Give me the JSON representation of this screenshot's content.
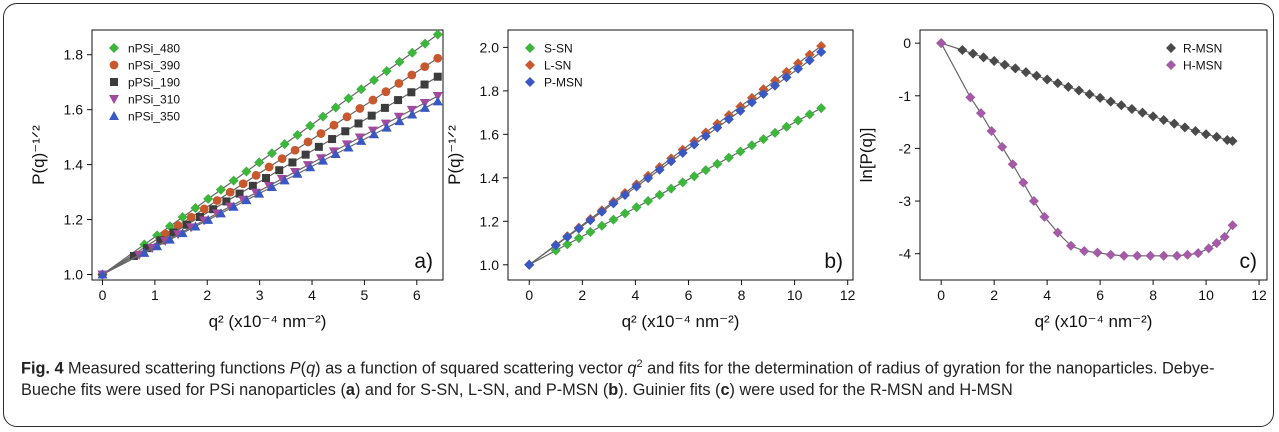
{
  "figure": {
    "caption": {
      "label": "Fig. 4",
      "s1": " Measured scattering functions ",
      "i1": "P",
      "s2": "(",
      "i2": "q",
      "s3": ") as a function of squared scattering vector ",
      "i3": "q",
      "sup1": "2",
      "s4": " and fits for the determination of radius of gyration for the nanoparticles. Debye-Bueche fits were used for PSi nanoparticles (",
      "b1": "a",
      "s5": ") and for S-SN, L-SN, and P-MSN (",
      "b2": "b",
      "s6": "). Guinier fits (",
      "b3": "c",
      "s7": ") were used for the R-MSN and H-MSN"
    }
  },
  "chart_data": [
    {
      "type": "scatter",
      "panel_label": "a)",
      "xlabel": "q² (x10⁻⁴ nm⁻²)",
      "ylabel": "P(q)⁻¹ᐟ²",
      "xlim": [
        -0.2,
        6.5
      ],
      "ylim": [
        0.98,
        1.89
      ],
      "xticks": [
        0,
        1,
        2,
        3,
        4,
        5,
        6
      ],
      "yticks": [
        1.0,
        1.2,
        1.4,
        1.6,
        1.8
      ],
      "legend_position": "top-left",
      "fit_lines": true,
      "series": [
        {
          "name": "nPSi_480",
          "color": "#3cb63c",
          "marker": "diamond",
          "slope": 0.1365,
          "xmin": 0.8,
          "xmax": 6.4,
          "n": 24
        },
        {
          "name": "nPSi_390",
          "color": "#c8592e",
          "marker": "circle",
          "slope": 0.123,
          "xmin": 1.2,
          "xmax": 6.4,
          "n": 22
        },
        {
          "name": "pPSi_190",
          "color": "#3c3c3c",
          "marker": "square",
          "slope": 0.1125,
          "xmin": 0.6,
          "xmax": 6.4,
          "n": 24
        },
        {
          "name": "nPSi_310",
          "color": "#a24a9e",
          "marker": "triangle-down",
          "slope": 0.1015,
          "xmin": 0.7,
          "xmax": 6.4,
          "n": 24
        },
        {
          "name": "nPSi_350",
          "color": "#3a58c4",
          "marker": "triangle-up",
          "slope": 0.0985,
          "xmin": 0.8,
          "xmax": 6.4,
          "n": 24
        }
      ]
    },
    {
      "type": "scatter",
      "panel_label": "b)",
      "xlabel": "q² (x10⁻⁴ nm⁻²)",
      "ylabel": "P(q)⁻¹ᐟ²",
      "xlim": [
        -0.8,
        12.2
      ],
      "ylim": [
        0.93,
        2.08
      ],
      "xticks": [
        0,
        2,
        4,
        6,
        8,
        10,
        12
      ],
      "yticks": [
        1.0,
        1.2,
        1.4,
        1.6,
        1.8,
        2.0
      ],
      "legend_position": "top-left",
      "fit_lines": true,
      "series": [
        {
          "name": "S-SN",
          "color": "#3cb63c",
          "marker": "diamond",
          "slope": 0.0655,
          "xmin": 1.0,
          "xmax": 11.0,
          "n": 24
        },
        {
          "name": "L-SN",
          "color": "#c8592e",
          "marker": "diamond",
          "slope": 0.0915,
          "xmin": 1.0,
          "xmax": 11.0,
          "n": 24
        },
        {
          "name": "P-MSN",
          "color": "#3a58c4",
          "marker": "diamond",
          "slope": 0.089,
          "xmin": 1.0,
          "xmax": 11.0,
          "n": 24
        }
      ]
    },
    {
      "type": "scatter",
      "panel_label": "c)",
      "xlabel": "q² (x10⁻⁴ nm⁻²)",
      "ylabel": "ln[P(q)]",
      "xlim": [
        -0.8,
        12.3
      ],
      "ylim": [
        -4.5,
        0.25
      ],
      "xticks": [
        0,
        2,
        4,
        6,
        8,
        10,
        12
      ],
      "yticks": [
        0,
        -1,
        -2,
        -3,
        -4
      ],
      "legend_position": "top-right",
      "fit_lines": true,
      "series": [
        {
          "name": "R-MSN",
          "color": "#4a4a4a",
          "marker": "diamond",
          "x": [
            0,
            0.8,
            1.2,
            1.6,
            2.0,
            2.4,
            2.8,
            3.2,
            3.6,
            4.0,
            4.4,
            4.8,
            5.2,
            5.6,
            6.0,
            6.4,
            6.8,
            7.2,
            7.6,
            8.0,
            8.4,
            8.8,
            9.2,
            9.6,
            10.0,
            10.4,
            10.8,
            11.0
          ],
          "y": [
            0,
            -0.13,
            -0.2,
            -0.27,
            -0.34,
            -0.41,
            -0.48,
            -0.55,
            -0.62,
            -0.69,
            -0.76,
            -0.83,
            -0.9,
            -0.97,
            -1.04,
            -1.11,
            -1.18,
            -1.25,
            -1.32,
            -1.39,
            -1.46,
            -1.53,
            -1.6,
            -1.67,
            -1.73,
            -1.78,
            -1.84,
            -1.86
          ]
        },
        {
          "name": "H-MSN",
          "color": "#a45aa6",
          "marker": "diamond",
          "x": [
            0,
            1.1,
            1.5,
            1.9,
            2.3,
            2.7,
            3.1,
            3.5,
            3.9,
            4.4,
            4.9,
            5.4,
            5.9,
            6.4,
            6.9,
            7.4,
            7.9,
            8.4,
            8.9,
            9.3,
            9.7,
            10.1,
            10.4,
            10.7,
            11.0
          ],
          "y": [
            0,
            -1.03,
            -1.33,
            -1.67,
            -1.97,
            -2.3,
            -2.65,
            -3.0,
            -3.3,
            -3.6,
            -3.85,
            -3.95,
            -3.98,
            -4.02,
            -4.04,
            -4.04,
            -4.04,
            -4.04,
            -4.04,
            -4.02,
            -3.99,
            -3.9,
            -3.8,
            -3.68,
            -3.46
          ]
        }
      ]
    }
  ]
}
